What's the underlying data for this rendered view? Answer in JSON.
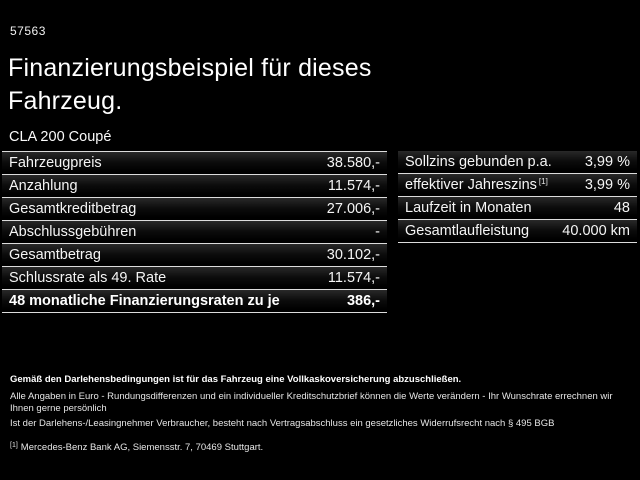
{
  "page": {
    "ref_number": "57563",
    "title_line1": "Finanzierungsbeispiel für dieses",
    "title_line2": "Fahrzeug.",
    "vehicle_name": "CLA 200 Coupé"
  },
  "finance_table": {
    "rows": [
      {
        "label": "Fahrzeugpreis",
        "value": "38.580,-"
      },
      {
        "label": "Anzahlung",
        "value": "11.574,-"
      },
      {
        "label": "Gesamtkreditbetrag",
        "value": "27.006,-"
      },
      {
        "label": "Abschlussgebühren",
        "value": "-"
      },
      {
        "label": "Gesamtbetrag",
        "value": "30.102,-"
      },
      {
        "label": "Schlussrate als 49. Rate",
        "value": "11.574,-"
      },
      {
        "label": "48 monatliche Finanzierungsraten zu je",
        "value": "386,-"
      }
    ]
  },
  "conditions_table": {
    "rows": [
      {
        "label": "Sollzins gebunden p.a.",
        "sup": "",
        "value": "3,99 %"
      },
      {
        "label": "effektiver Jahreszins",
        "sup": "[1]",
        "value": "3,99 %"
      },
      {
        "label": "Laufzeit in Monaten",
        "sup": "",
        "value": "48"
      },
      {
        "label": "Gesamtlaufleistung",
        "sup": "",
        "value": "40.000 km"
      }
    ]
  },
  "footer": {
    "bold_note": "Gemäß den Darlehensbedingungen ist für das Fahrzeug eine Vollkaskoversicherung abzuschließen.",
    "note_line1": "Alle Angaben in Euro - Rundungsdifferenzen und ein individueller Kreditschutzbrief können die Werte verändern - Ihr Wunschrate errechnen wir Ihnen gerne persönlich",
    "note_line2": "Ist der Darlehens-/Leasingnehmer Verbraucher, besteht nach Vertragsabschluss ein gesetzliches Widerrufsrecht nach § 495 BGB",
    "footnote_marker": "[1]",
    "footnote_text": "Mercedes-Benz Bank AG, Siemensstr. 7, 70469 Stuttgart."
  },
  "colors": {
    "background": "#000000",
    "text": "#ffffff",
    "divider": "#dcdcdc"
  }
}
